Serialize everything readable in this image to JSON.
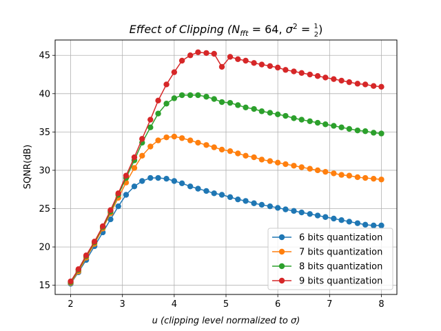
{
  "chart_data": {
    "type": "line",
    "title": "Effect of Clipping (N_fft = 64, σ² = 1/2)",
    "title_parts": {
      "prefix": "Effect of Clipping (",
      "n_sym": "N",
      "n_sub": "fft",
      "n_eq": " = 64, ",
      "sigma_sym": "σ",
      "sigma_sup": "2",
      "sigma_eq": " = ",
      "frac_num": "1",
      "frac_den": "2",
      "suffix": ")"
    },
    "xlabel": "u (clipping level normalized to σ)",
    "ylabel": "SQNR(dB)",
    "xlim": [
      1.7,
      8.3
    ],
    "ylim": [
      13.8,
      47.0
    ],
    "xticks": [
      2,
      3,
      4,
      5,
      6,
      7,
      8
    ],
    "yticks": [
      15,
      20,
      25,
      30,
      35,
      40,
      45
    ],
    "grid": true,
    "legend_position": "lower-right",
    "x": [
      2.0,
      2.15,
      2.3,
      2.46,
      2.62,
      2.77,
      2.92,
      3.07,
      3.23,
      3.38,
      3.54,
      3.69,
      3.85,
      4.0,
      4.15,
      4.31,
      4.46,
      4.62,
      4.77,
      4.92,
      5.08,
      5.23,
      5.38,
      5.54,
      5.69,
      5.85,
      6.0,
      6.15,
      6.31,
      6.46,
      6.62,
      6.77,
      6.92,
      7.08,
      7.23,
      7.38,
      7.54,
      7.69,
      7.85,
      8.0
    ],
    "series": [
      {
        "name": "6 bits quantization",
        "color": "#1f77b4",
        "values": [
          15.2,
          16.7,
          18.3,
          20.1,
          21.9,
          23.6,
          25.3,
          26.8,
          27.9,
          28.6,
          29.0,
          29.0,
          28.9,
          28.6,
          28.3,
          27.9,
          27.6,
          27.3,
          27.0,
          26.8,
          26.5,
          26.2,
          26.0,
          25.7,
          25.5,
          25.3,
          25.1,
          24.9,
          24.7,
          24.5,
          24.3,
          24.1,
          23.9,
          23.7,
          23.5,
          23.3,
          23.1,
          22.9,
          22.8,
          22.8
        ]
      },
      {
        "name": "7 bits quantization",
        "color": "#ff7f0e",
        "values": [
          15.3,
          16.8,
          18.6,
          20.4,
          22.4,
          24.4,
          26.4,
          28.4,
          30.3,
          31.9,
          33.1,
          33.9,
          34.3,
          34.4,
          34.2,
          33.9,
          33.6,
          33.3,
          33.0,
          32.7,
          32.5,
          32.2,
          31.9,
          31.7,
          31.4,
          31.2,
          31.0,
          30.8,
          30.6,
          30.4,
          30.2,
          30.0,
          29.8,
          29.6,
          29.4,
          29.3,
          29.1,
          29.0,
          28.9,
          28.8
        ]
      },
      {
        "name": "8 bits quantization",
        "color": "#2ca02c",
        "values": [
          15.4,
          17.0,
          18.8,
          20.6,
          22.6,
          24.6,
          26.8,
          29.0,
          31.3,
          33.6,
          35.6,
          37.4,
          38.7,
          39.4,
          39.8,
          39.8,
          39.8,
          39.6,
          39.3,
          38.9,
          38.8,
          38.5,
          38.2,
          38.0,
          37.7,
          37.5,
          37.3,
          37.1,
          36.8,
          36.6,
          36.4,
          36.2,
          36.0,
          35.8,
          35.6,
          35.4,
          35.2,
          35.1,
          34.9,
          34.8
        ]
      },
      {
        "name": "9 bits quantization",
        "color": "#d62728",
        "values": [
          15.5,
          17.1,
          18.9,
          20.7,
          22.7,
          24.8,
          27.0,
          29.3,
          31.7,
          34.1,
          36.6,
          39.1,
          41.2,
          42.8,
          44.3,
          45.0,
          45.4,
          45.3,
          45.2,
          43.5,
          44.8,
          44.5,
          44.3,
          44.0,
          43.8,
          43.6,
          43.4,
          43.1,
          42.9,
          42.7,
          42.5,
          42.3,
          42.1,
          41.9,
          41.7,
          41.5,
          41.3,
          41.2,
          41.0,
          40.9
        ]
      }
    ]
  }
}
